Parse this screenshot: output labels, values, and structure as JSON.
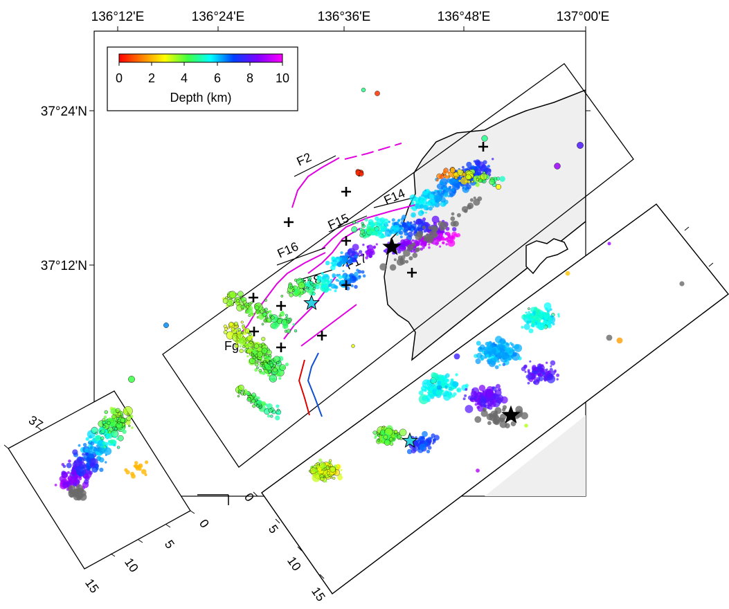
{
  "map": {
    "longitude_ticks": [
      "136°12'E",
      "136°24'E",
      "136°36'E",
      "136°48'E",
      "137°00'E"
    ],
    "latitude_ticks": [
      "37°24'N",
      "37°12'N"
    ],
    "fault_labels": [
      "F2",
      "F14",
      "F15",
      "F16",
      "F17",
      "F18",
      "Fg"
    ],
    "land_color": "#efefef",
    "fault_color": "#e000e0",
    "coastline_color": "#000000"
  },
  "colorbar": {
    "title": "Depth (km)",
    "ticks": [
      "0",
      "2",
      "4",
      "6",
      "8",
      "10"
    ],
    "range": [
      0,
      10
    ]
  },
  "cross_section_long": {
    "depth_ticks": [
      "0",
      "5",
      "10",
      "15"
    ]
  },
  "cross_section_short": {
    "edge_label": "37",
    "depth_ticks": [
      "0",
      "5",
      "10",
      "15"
    ]
  },
  "markers": {
    "mainshock": "black star",
    "foreshock": "cyan star",
    "stations": "black crosses"
  }
}
